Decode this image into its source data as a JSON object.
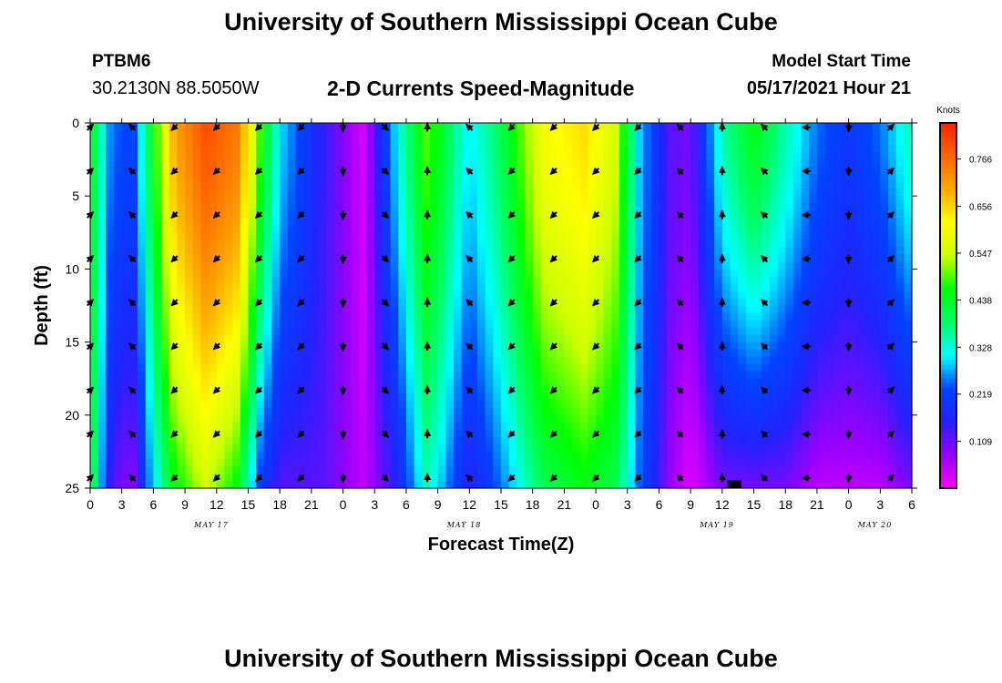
{
  "page": {
    "title": "University of Southern Mississippi Ocean Cube",
    "footer_title": "University of Southern Mississippi Ocean Cube",
    "station_id": "PTBM6",
    "station_coords": "30.2130N  88.5050W",
    "model_start_label": "Model Start Time",
    "model_start_time": "05/17/2021 Hour 21"
  },
  "chart_data": {
    "type": "heatmap",
    "title": "2-D Currents Speed-Magnitude",
    "xlabel": "Forecast Time(Z)",
    "ylabel": "Depth (ft)",
    "units_label": "Knots",
    "x_hours_range": [
      0,
      78
    ],
    "y_range": [
      0,
      25
    ],
    "y_ticks": [
      0,
      5,
      10,
      15,
      20,
      25
    ],
    "x_tick_labels": [
      "0",
      "3",
      "6",
      "9",
      "12",
      "15",
      "18",
      "21",
      "0",
      "3",
      "6",
      "9",
      "12",
      "15",
      "18",
      "21",
      "0",
      "3",
      "6",
      "9",
      "12",
      "15",
      "18",
      "21",
      "0",
      "3",
      "6"
    ],
    "date_labels": [
      {
        "label": "MAY 17",
        "hour": 11.5
      },
      {
        "label": "MAY 18",
        "hour": 35.5
      },
      {
        "label": "MAY 19",
        "hour": 59.5
      },
      {
        "label": "MAY 20",
        "hour": 74.5
      }
    ],
    "colorbar": {
      "min": 0.0,
      "max": 0.85,
      "ticks": [
        "0.109",
        "0.219",
        "0.328",
        "0.438",
        "0.547",
        "0.656",
        "0.766"
      ],
      "colors": [
        "#ff00ff",
        "#9900ff",
        "#2222ff",
        "#0044ff",
        "#00ffff",
        "#00ff66",
        "#00ff00",
        "#ccff00",
        "#ffff00",
        "#ffaa00",
        "#ff6600",
        "#ff2200"
      ]
    },
    "speed_profiles": [
      {
        "hour": 0,
        "surface": 0.45,
        "bottom": 0.45
      },
      {
        "hour": 2,
        "surface": 0.25,
        "bottom": 0.12
      },
      {
        "hour": 4,
        "surface": 0.22,
        "bottom": 0.08
      },
      {
        "hour": 6,
        "surface": 0.45,
        "bottom": 0.3
      },
      {
        "hour": 8,
        "surface": 0.7,
        "bottom": 0.45
      },
      {
        "hour": 11,
        "surface": 0.8,
        "bottom": 0.55
      },
      {
        "hour": 14,
        "surface": 0.75,
        "bottom": 0.45
      },
      {
        "hour": 16,
        "surface": 0.5,
        "bottom": 0.22
      },
      {
        "hour": 18,
        "surface": 0.3,
        "bottom": 0.12
      },
      {
        "hour": 22,
        "surface": 0.15,
        "bottom": 0.12
      },
      {
        "hour": 26,
        "surface": 0.03,
        "bottom": 0.05
      },
      {
        "hour": 29,
        "surface": 0.3,
        "bottom": 0.15
      },
      {
        "hour": 32,
        "surface": 0.5,
        "bottom": 0.35
      },
      {
        "hour": 36,
        "surface": 0.3,
        "bottom": 0.15
      },
      {
        "hour": 39,
        "surface": 0.4,
        "bottom": 0.25
      },
      {
        "hour": 43,
        "surface": 0.6,
        "bottom": 0.4
      },
      {
        "hour": 47,
        "surface": 0.65,
        "bottom": 0.45
      },
      {
        "hour": 50,
        "surface": 0.55,
        "bottom": 0.4
      },
      {
        "hour": 52,
        "surface": 0.3,
        "bottom": 0.25
      },
      {
        "hour": 55,
        "surface": 0.12,
        "bottom": 0.08
      },
      {
        "hour": 57,
        "surface": 0.1,
        "bottom": 0.02
      },
      {
        "hour": 60,
        "surface": 0.35,
        "bottom": 0.1
      },
      {
        "hour": 63,
        "surface": 0.45,
        "bottom": 0.1
      },
      {
        "hour": 66,
        "surface": 0.35,
        "bottom": 0.1
      },
      {
        "hour": 69,
        "surface": 0.25,
        "bottom": 0.05
      },
      {
        "hour": 72,
        "surface": 0.2,
        "bottom": 0.05
      },
      {
        "hour": 75,
        "surface": 0.25,
        "bottom": 0.05
      },
      {
        "hour": 78,
        "surface": 0.35,
        "bottom": 0.1
      }
    ],
    "vectors": {
      "hour_step": 4,
      "depths": [
        0,
        3,
        6,
        9,
        12,
        15,
        18,
        21,
        24
      ],
      "direction_by_hour": [
        {
          "hour": 0,
          "dx": 1,
          "dy": -1
        },
        {
          "hour": 4,
          "dx": -1,
          "dy": -1
        },
        {
          "hour": 8,
          "dx": -1,
          "dy": 1
        },
        {
          "hour": 12,
          "dx": -1,
          "dy": 1
        },
        {
          "hour": 16,
          "dx": -1,
          "dy": 1
        },
        {
          "hour": 20,
          "dx": -1,
          "dy": 1
        },
        {
          "hour": 24,
          "dx": 0,
          "dy": 1
        },
        {
          "hour": 28,
          "dx": 1,
          "dy": 1
        },
        {
          "hour": 32,
          "dx": 0,
          "dy": -1
        },
        {
          "hour": 36,
          "dx": -1,
          "dy": -1
        },
        {
          "hour": 40,
          "dx": -1,
          "dy": 1
        },
        {
          "hour": 44,
          "dx": -1,
          "dy": 1
        },
        {
          "hour": 48,
          "dx": -1,
          "dy": 1
        },
        {
          "hour": 52,
          "dx": -1,
          "dy": 1
        },
        {
          "hour": 56,
          "dx": -1,
          "dy": -1
        },
        {
          "hour": 60,
          "dx": 0,
          "dy": -1
        },
        {
          "hour": 64,
          "dx": -1,
          "dy": -1
        },
        {
          "hour": 68,
          "dx": -1,
          "dy": 0
        },
        {
          "hour": 72,
          "dx": 0,
          "dy": 1
        },
        {
          "hour": 76,
          "dx": 1,
          "dy": -1
        }
      ]
    }
  }
}
